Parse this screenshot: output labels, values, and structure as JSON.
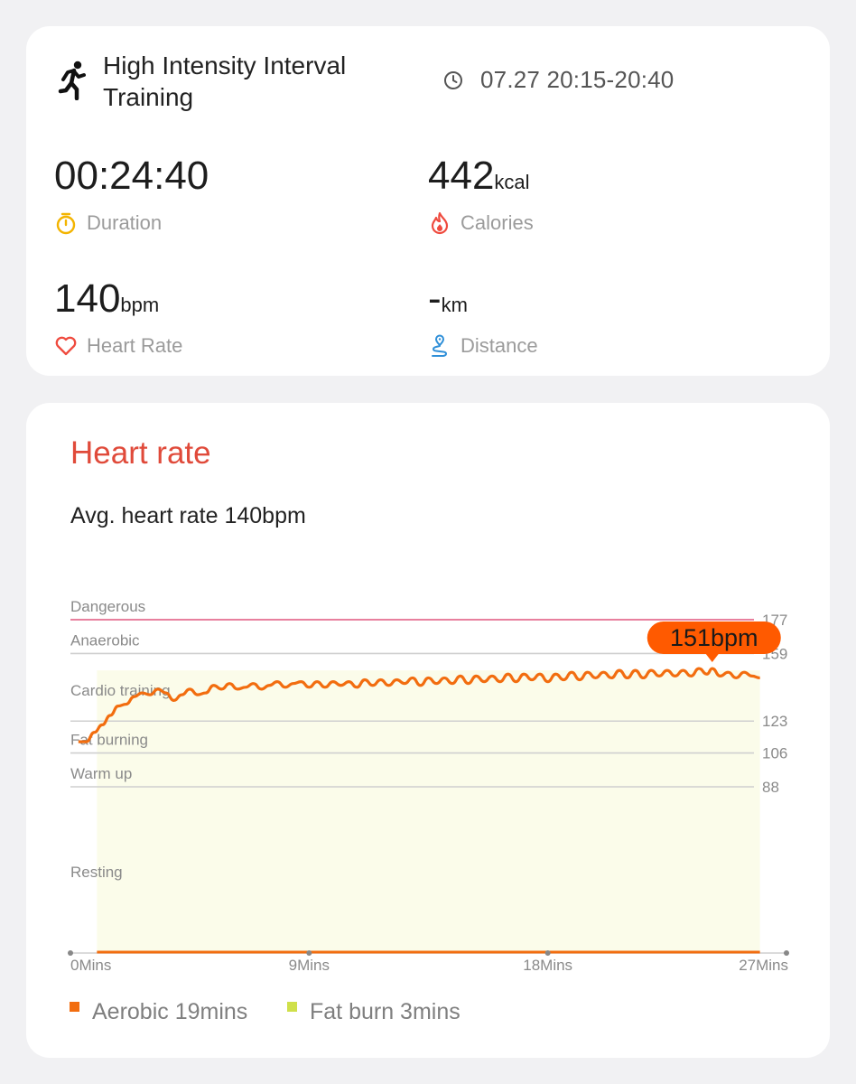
{
  "workout": {
    "title": "High Intensity Interval Training",
    "time_range": "07.27 20:15-20:40",
    "icon": "running-person-icon"
  },
  "stats": {
    "duration": {
      "value": "00:24:40",
      "unit": "",
      "label": "Duration",
      "icon": "stopwatch-icon",
      "color": "#f3b400"
    },
    "calories": {
      "value": "442",
      "unit": "kcal",
      "label": "Calories",
      "icon": "flame-icon",
      "color": "#ef4b3f"
    },
    "heart_rate": {
      "value": "140",
      "unit": "bpm",
      "label": "Heart Rate",
      "icon": "heart-icon",
      "color": "#ef4b3f"
    },
    "distance": {
      "value": "-",
      "unit": "km",
      "label": "Distance",
      "icon": "route-pin-icon",
      "color": "#2f8fd8"
    }
  },
  "heart_rate_section": {
    "title": "Heart rate",
    "avg_text": "Avg. heart rate 140bpm"
  },
  "chart_data": {
    "type": "line",
    "peak_label": "151bpm",
    "peak": {
      "x": 24.2,
      "y": 151
    },
    "zones": [
      {
        "name": "Dangerous",
        "threshold": 177,
        "threshold_label": "177",
        "color": "#d9285f"
      },
      {
        "name": "Anaerobic",
        "threshold": 159,
        "threshold_label": "159",
        "color": "#8a8a8a"
      },
      {
        "name": "Cardio training",
        "threshold": 123,
        "threshold_label": "123",
        "color": "#8a8a8a"
      },
      {
        "name": "Fat burning",
        "threshold": 106,
        "threshold_label": "106",
        "color": "#8a8a8a"
      },
      {
        "name": "Warm up",
        "threshold": 88,
        "threshold_label": "88",
        "color": "#8a8a8a"
      },
      {
        "name": "Resting",
        "threshold": null,
        "threshold_label": "",
        "color": "#8a8a8a"
      }
    ],
    "x_ticks": [
      {
        "value": 0,
        "label": "0Mins"
      },
      {
        "value": 9,
        "label": "9Mins"
      },
      {
        "value": 18,
        "label": "18Mins"
      },
      {
        "value": 27,
        "label": "27Mins"
      }
    ],
    "xlim": [
      0,
      27
    ],
    "series": [
      {
        "color": "#f26d0f",
        "x": [
          0.3,
          0.6,
          0.9,
          1.2,
          1.5,
          1.8,
          2.1,
          2.4,
          2.7,
          3.0,
          3.3,
          3.6,
          3.9,
          4.2,
          4.5,
          4.8,
          5.1,
          5.4,
          5.7,
          6.0,
          6.3,
          6.6,
          6.9,
          7.2,
          7.5,
          7.8,
          8.1,
          8.4,
          8.7,
          9.0,
          9.3,
          9.6,
          9.9,
          10.2,
          10.5,
          10.8,
          11.1,
          11.4,
          11.7,
          12.0,
          12.3,
          12.6,
          12.9,
          13.2,
          13.5,
          13.8,
          14.1,
          14.4,
          14.7,
          15.0,
          15.3,
          15.6,
          15.9,
          16.2,
          16.5,
          16.8,
          17.1,
          17.4,
          17.7,
          18.0,
          18.3,
          18.6,
          18.9,
          19.2,
          19.5,
          19.8,
          20.1,
          20.4,
          20.7,
          21.0,
          21.3,
          21.6,
          21.9,
          22.2,
          22.5,
          22.8,
          23.1,
          23.4,
          23.7,
          24.0,
          24.2,
          24.5,
          24.8,
          25.1,
          25.4,
          25.7,
          26.0
        ],
        "y": [
          112,
          112,
          117,
          121,
          126,
          131,
          132,
          136,
          138,
          137,
          140,
          138,
          134,
          137,
          140,
          137,
          138,
          142,
          140,
          143,
          140,
          141,
          143,
          140,
          142,
          144,
          141,
          143,
          144,
          141,
          144,
          141,
          144,
          142,
          144,
          141,
          145,
          142,
          145,
          142,
          145,
          143,
          146,
          142,
          146,
          143,
          146,
          143,
          147,
          143,
          147,
          144,
          147,
          144,
          148,
          144,
          148,
          145,
          148,
          144,
          148,
          145,
          149,
          145,
          149,
          146,
          149,
          146,
          150,
          146,
          150,
          146,
          150,
          147,
          150,
          147,
          150,
          147,
          151,
          148,
          151,
          147,
          149,
          146,
          149,
          147,
          146
        ]
      }
    ],
    "legend": [
      {
        "name": "Aerobic 19mins",
        "color": "#f26d0f"
      },
      {
        "name": "Fat burn 3mins",
        "color": "#cfe04a"
      }
    ]
  }
}
